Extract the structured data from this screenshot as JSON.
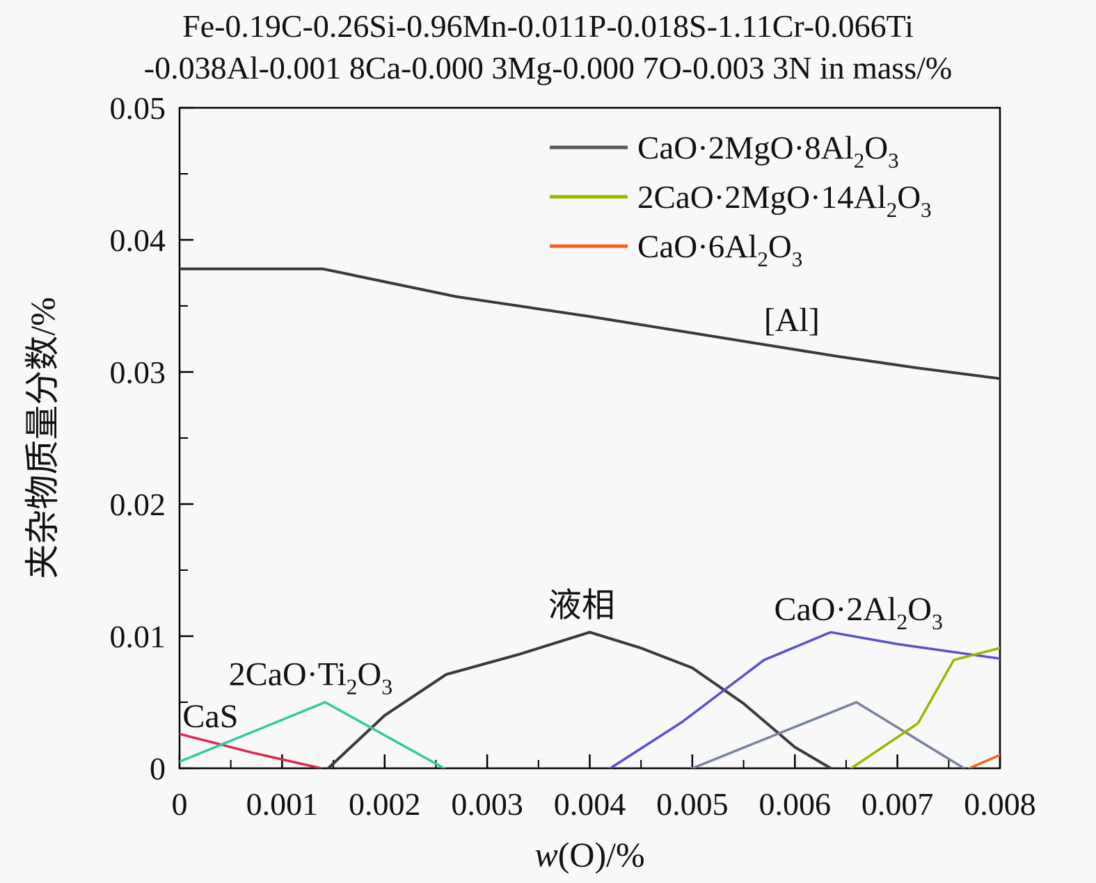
{
  "title": {
    "line1": "Fe-0.19C-0.26Si-0.96Mn-0.011P-0.018S-1.11Cr-0.066Ti",
    "line2": "-0.038Al-0.001 8Ca-0.000 3Mg-0.000 7O-0.003 3N in mass/%"
  },
  "chart_data": {
    "type": "line",
    "title": "Fe-0.19C-0.26Si-0.96Mn-0.011P-0.018S-1.11Cr-0.066Ti -0.038Al-0.001 8Ca-0.000 3Mg-0.000 7O-0.003 3N in mass/%",
    "xlabel": {
      "italic": "w",
      "rest": "(O)/%"
    },
    "ylabel": "夹杂物质量分数/%",
    "xlim": [
      0,
      0.008
    ],
    "ylim": [
      0,
      0.05
    ],
    "grid": false,
    "legend_position": "top-right-inside",
    "xticks": [
      {
        "v": 0,
        "label": "0"
      },
      {
        "v": 0.001,
        "label": "0.001"
      },
      {
        "v": 0.002,
        "label": "0.002"
      },
      {
        "v": 0.003,
        "label": "0.003"
      },
      {
        "v": 0.004,
        "label": "0.004"
      },
      {
        "v": 0.005,
        "label": "0.005"
      },
      {
        "v": 0.006,
        "label": "0.006"
      },
      {
        "v": 0.007,
        "label": "0.007"
      },
      {
        "v": 0.008,
        "label": "0.008"
      }
    ],
    "yticks": [
      {
        "v": 0,
        "label": "0"
      },
      {
        "v": 0.01,
        "label": "0.01"
      },
      {
        "v": 0.02,
        "label": "0.02"
      },
      {
        "v": 0.03,
        "label": "0.03"
      },
      {
        "v": 0.04,
        "label": "0.04"
      },
      {
        "v": 0.05,
        "label": "0.05"
      }
    ],
    "legend": [
      {
        "label": "CaO·2MgO·8Al₂O₃",
        "color": "#595959"
      },
      {
        "label": "2CaO·2MgO·14Al₂O₃",
        "color": "#9db400"
      },
      {
        "label": "CaO·6Al₂O₃",
        "color": "#f2641e"
      }
    ],
    "series": [
      {
        "id": "al-dissolved",
        "name": "[Al]",
        "color": "#3a3a3a",
        "width": 4,
        "points": [
          [
            0,
            0.0378
          ],
          [
            0.0014,
            0.0378
          ],
          [
            0.0027,
            0.0357
          ],
          [
            0.004,
            0.0342
          ],
          [
            0.0052,
            0.0327
          ],
          [
            0.0064,
            0.0312
          ],
          [
            0.0072,
            0.0303
          ],
          [
            0.008,
            0.0295
          ]
        ]
      },
      {
        "id": "liquid-phase",
        "name": "液相",
        "color": "#3a3a3a",
        "width": 4,
        "points": [
          [
            0.00145,
            0
          ],
          [
            0.002,
            0.004
          ],
          [
            0.0026,
            0.0071
          ],
          [
            0.0033,
            0.0086
          ],
          [
            0.004,
            0.0103
          ],
          [
            0.0045,
            0.0091
          ],
          [
            0.005,
            0.0076
          ],
          [
            0.0055,
            0.0049
          ],
          [
            0.006,
            0.0016
          ],
          [
            0.00635,
            0
          ]
        ]
      },
      {
        "id": "cas",
        "name": "CaS",
        "color": "#d62b50",
        "width": 3.5,
        "points": [
          [
            0,
            0.0026
          ],
          [
            0.0007,
            0.0012
          ],
          [
            0.00138,
            0
          ]
        ]
      },
      {
        "id": "2cao-ti2o3",
        "name": "2CaO·Ti₂O₃",
        "color": "#35c8a0",
        "width": 3.5,
        "points": [
          [
            0,
            0.0005
          ],
          [
            0.00142,
            0.005
          ],
          [
            0.00258,
            0
          ]
        ]
      },
      {
        "id": "cao-2al2o3",
        "name": "CaO·2Al₂O₃",
        "color": "#5752c8",
        "width": 3.5,
        "points": [
          [
            0.0042,
            0
          ],
          [
            0.0049,
            0.0035
          ],
          [
            0.0057,
            0.0082
          ],
          [
            0.00635,
            0.0103
          ],
          [
            0.007,
            0.0094
          ],
          [
            0.008,
            0.0083
          ]
        ]
      },
      {
        "id": "cao-2mgo-8al2o3",
        "name": "CaO·2MgO·8Al₂O₃",
        "color": "#76819d",
        "width": 3.5,
        "points": [
          [
            0.005,
            0
          ],
          [
            0.0066,
            0.005
          ],
          [
            0.00765,
            0
          ]
        ]
      },
      {
        "id": "2cao-2mgo-14al2o3",
        "name": "2CaO·2MgO·14Al₂O₃",
        "color": "#9db400",
        "width": 3.5,
        "points": [
          [
            0.00655,
            0
          ],
          [
            0.0072,
            0.0034
          ],
          [
            0.00755,
            0.0082
          ],
          [
            0.008,
            0.0091
          ]
        ]
      },
      {
        "id": "cao-6al2o3",
        "name": "CaO·6Al₂O₃",
        "color": "#f2641e",
        "width": 3.5,
        "points": [
          [
            0.0077,
            0
          ],
          [
            0.008,
            0.001
          ]
        ]
      }
    ],
    "annotations": [
      {
        "id": "cas-label",
        "text": "CaS",
        "x": 3e-05,
        "y": 0.0031,
        "anchor": "start"
      },
      {
        "id": "2cao-ti2o3-label",
        "text": "2CaO·Ti₂O₃",
        "x": 0.00048,
        "y": 0.0063,
        "anchor": "start"
      },
      {
        "id": "liquid-phase-label",
        "text": "液相",
        "x": 0.00392,
        "y": 0.0115,
        "anchor": "middle"
      },
      {
        "id": "al-label",
        "text": "[Al]",
        "x": 0.00597,
        "y": 0.0331,
        "anchor": "middle"
      },
      {
        "id": "cao-2al2o3-label",
        "text": "CaO·2Al₂O₃",
        "x": 0.00662,
        "y": 0.0112,
        "anchor": "middle"
      }
    ]
  }
}
